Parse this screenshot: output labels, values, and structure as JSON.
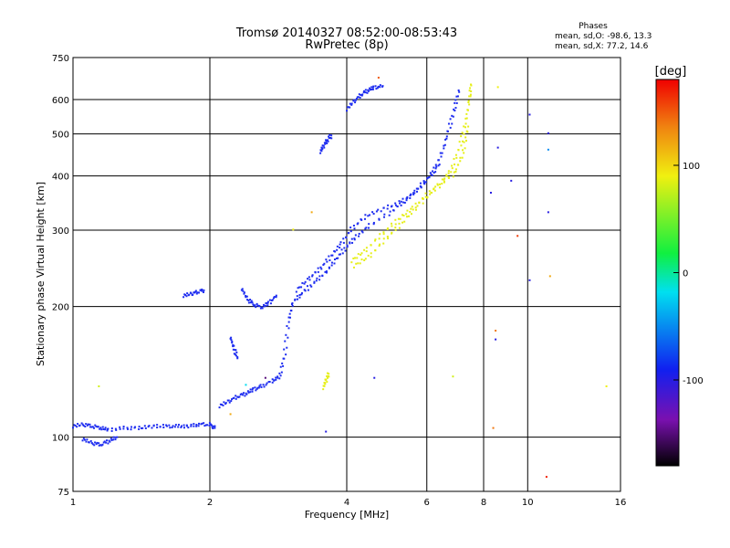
{
  "chart_data": {
    "type": "scatter",
    "title": "Tromsø 20140327 08:52:00-08:53:43",
    "subtitle": "RwPretec (8p)",
    "xlabel": "Frequency [MHz]",
    "ylabel": "Stationary phase Virtual Height [km]",
    "x_scale": "log",
    "y_scale": "log",
    "xlim": [
      1,
      16
    ],
    "ylim": [
      75,
      750
    ],
    "x_ticks": [
      1,
      2,
      4,
      6,
      8,
      10,
      16
    ],
    "y_ticks": [
      75,
      100,
      200,
      300,
      400,
      500,
      600,
      750
    ],
    "grid": true,
    "phase_stats": {
      "heading": "Phases",
      "o_line": "mean, sd,O: -98.6, 13.3",
      "x_line": "mean, sd,X:  77.2, 14.6"
    },
    "colorbar": {
      "label": "[deg]",
      "range": [
        -180,
        180
      ],
      "ticks": [
        100,
        0,
        -100
      ],
      "colormap": "rainbow (black-purple-blue-cyan-green-yellow-red)"
    },
    "series": [
      {
        "name": "O",
        "phase_deg": -100,
        "color": "#1e2df0",
        "segments": [
          [
            [
              1.0,
              106
            ],
            [
              1.05,
              107
            ],
            [
              1.1,
              106
            ],
            [
              1.15,
              105
            ],
            [
              1.2,
              104
            ],
            [
              1.3,
              105
            ],
            [
              1.4,
              105
            ],
            [
              1.5,
              106
            ],
            [
              1.6,
              106
            ],
            [
              1.7,
              106
            ],
            [
              1.8,
              106
            ],
            [
              1.9,
              107
            ],
            [
              2.0,
              107
            ],
            [
              2.05,
              105
            ]
          ],
          [
            [
              1.05,
              99
            ],
            [
              1.1,
              97
            ],
            [
              1.15,
              96
            ],
            [
              1.2,
              98
            ],
            [
              1.25,
              100
            ]
          ],
          [
            [
              2.1,
              118
            ],
            [
              2.2,
              121
            ],
            [
              2.3,
              124
            ],
            [
              2.4,
              126
            ],
            [
              2.5,
              129
            ],
            [
              2.6,
              131
            ],
            [
              2.75,
              135
            ],
            [
              2.85,
              138
            ],
            [
              2.92,
              155
            ],
            [
              2.98,
              185
            ],
            [
              3.05,
              205
            ],
            [
              3.2,
              215
            ],
            [
              3.4,
              228
            ],
            [
              3.6,
              240
            ],
            [
              3.8,
              258
            ],
            [
              4.0,
              275
            ],
            [
              4.2,
              290
            ],
            [
              4.5,
              308
            ],
            [
              5.0,
              330
            ],
            [
              5.4,
              352
            ],
            [
              5.8,
              378
            ],
            [
              6.2,
              410
            ],
            [
              6.5,
              455
            ],
            [
              6.7,
              510
            ],
            [
              6.9,
              570
            ],
            [
              7.05,
              630
            ]
          ],
          [
            [
              3.1,
              218
            ],
            [
              3.3,
              232
            ],
            [
              3.5,
              245
            ],
            [
              3.7,
              262
            ],
            [
              3.9,
              280
            ],
            [
              4.1,
              302
            ],
            [
              4.4,
              323
            ],
            [
              4.8,
              336
            ],
            [
              5.2,
              346
            ],
            [
              5.6,
              364
            ],
            [
              6.0,
              390
            ],
            [
              6.4,
              425
            ]
          ],
          [
            [
              2.35,
              220
            ],
            [
              2.42,
              208
            ],
            [
              2.5,
              202
            ],
            [
              2.6,
              199
            ],
            [
              2.7,
              204
            ],
            [
              2.8,
              212
            ]
          ],
          [
            [
              1.75,
              212
            ],
            [
              1.82,
              214
            ],
            [
              1.88,
              216
            ],
            [
              1.94,
              218
            ]
          ],
          [
            [
              2.22,
              170
            ],
            [
              2.26,
              160
            ],
            [
              2.3,
              152
            ]
          ],
          [
            [
              3.5,
              455
            ],
            [
              3.55,
              468
            ],
            [
              3.62,
              482
            ],
            [
              3.7,
              496
            ]
          ],
          [
            [
              4.0,
              570
            ],
            [
              4.15,
              595
            ],
            [
              4.3,
              615
            ],
            [
              4.45,
              630
            ],
            [
              4.6,
              640
            ],
            [
              4.8,
              645
            ]
          ]
        ]
      },
      {
        "name": "X",
        "phase_deg": 77,
        "color": "#e6ef1a",
        "segments": [
          [
            [
              4.1,
              255
            ],
            [
              4.4,
              270
            ],
            [
              4.8,
              295
            ],
            [
              5.2,
              318
            ],
            [
              5.6,
              338
            ],
            [
              6.0,
              362
            ],
            [
              6.5,
              390
            ],
            [
              6.8,
              415
            ],
            [
              7.1,
              470
            ],
            [
              7.3,
              530
            ],
            [
              7.45,
              600
            ],
            [
              7.5,
              650
            ]
          ],
          [
            [
              4.15,
              248
            ],
            [
              4.5,
              262
            ],
            [
              4.9,
              288
            ],
            [
              5.3,
              312
            ],
            [
              5.8,
              345
            ],
            [
              6.3,
              375
            ],
            [
              6.9,
              405
            ],
            [
              7.2,
              450
            ],
            [
              7.4,
              520
            ]
          ],
          [
            [
              3.55,
              130
            ],
            [
              3.6,
              135
            ],
            [
              3.65,
              140
            ]
          ]
        ]
      }
    ],
    "stray_points": [
      {
        "x": 1.14,
        "y": 131,
        "phase_deg": 80
      },
      {
        "x": 2.22,
        "y": 113,
        "phase_deg": 120
      },
      {
        "x": 2.4,
        "y": 132,
        "phase_deg": -20
      },
      {
        "x": 2.65,
        "y": 137,
        "phase_deg": -150
      },
      {
        "x": 3.05,
        "y": 301,
        "phase_deg": 90
      },
      {
        "x": 3.35,
        "y": 330,
        "phase_deg": 120
      },
      {
        "x": 3.6,
        "y": 103,
        "phase_deg": -100
      },
      {
        "x": 4.6,
        "y": 137,
        "phase_deg": -100
      },
      {
        "x": 4.7,
        "y": 674,
        "phase_deg": 150
      },
      {
        "x": 6.85,
        "y": 138,
        "phase_deg": 80
      },
      {
        "x": 8.3,
        "y": 366,
        "phase_deg": -100
      },
      {
        "x": 8.4,
        "y": 105,
        "phase_deg": 140
      },
      {
        "x": 8.5,
        "y": 176,
        "phase_deg": 140
      },
      {
        "x": 8.5,
        "y": 168,
        "phase_deg": -100
      },
      {
        "x": 8.6,
        "y": 641,
        "phase_deg": 90
      },
      {
        "x": 8.6,
        "y": 465,
        "phase_deg": -100
      },
      {
        "x": 9.2,
        "y": 390,
        "phase_deg": -100
      },
      {
        "x": 9.5,
        "y": 291,
        "phase_deg": 160
      },
      {
        "x": 10.1,
        "y": 554,
        "phase_deg": -100
      },
      {
        "x": 10.1,
        "y": 230,
        "phase_deg": -100
      },
      {
        "x": 11.1,
        "y": 502,
        "phase_deg": -100
      },
      {
        "x": 11.1,
        "y": 460,
        "phase_deg": -50
      },
      {
        "x": 11.1,
        "y": 330,
        "phase_deg": -100
      },
      {
        "x": 11.2,
        "y": 235,
        "phase_deg": 120
      },
      {
        "x": 11.0,
        "y": 81,
        "phase_deg": 170
      },
      {
        "x": 14.9,
        "y": 131,
        "phase_deg": 90
      }
    ]
  }
}
